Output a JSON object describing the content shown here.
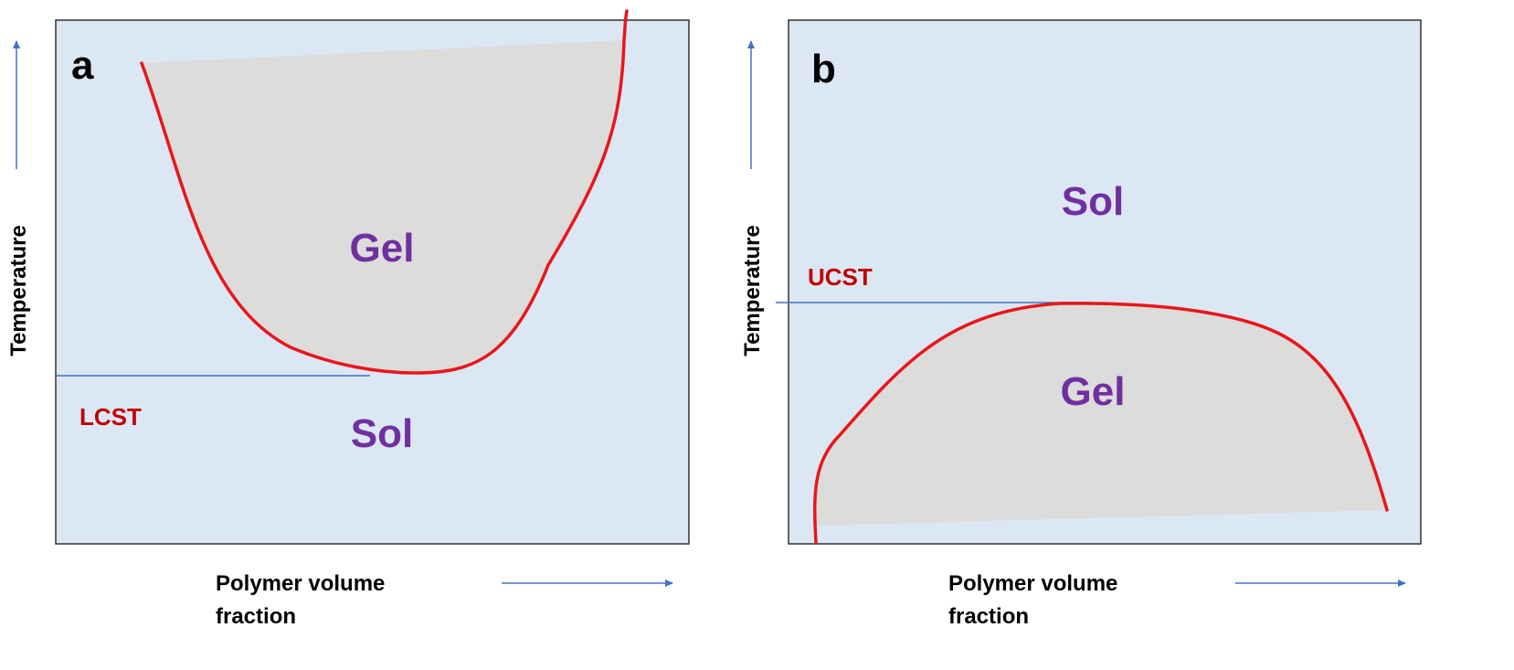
{
  "colors": {
    "panel_fill": "#DCE7F4",
    "panel_border": "#333333",
    "boundary": "#E8161B",
    "gel_fill": "#E2E2E0",
    "arrow": "#4472C4",
    "region_text": "#7030A0",
    "critical_text": "#C00000"
  },
  "panels": [
    {
      "label": "a",
      "upper_region": "Gel",
      "lower_region": "Sol",
      "critical_label": "LCST",
      "y_axis_label": "Temperature",
      "x_axis_label_line1": "Polymer volume",
      "x_axis_label_line2": "fraction"
    },
    {
      "label": "b",
      "upper_region": "Sol",
      "lower_region": "Gel",
      "critical_label": "UCST",
      "y_axis_label": "Temperature",
      "x_axis_label_line1": "Polymer volume",
      "x_axis_label_line2": "fraction"
    }
  ]
}
